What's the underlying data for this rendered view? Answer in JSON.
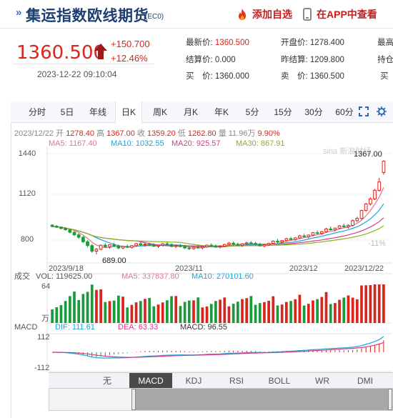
{
  "header": {
    "title_mark": "»",
    "title": "集运指数欧线期货",
    "code": "(EC0)",
    "add_favorite": "添加自选",
    "app_view": "在APP中查看"
  },
  "quote": {
    "price": "1360.500",
    "change": "+150.700",
    "change_pct": "+12.46%",
    "time": "2023-12-22 09:10:04",
    "fields": [
      {
        "label": "最新价:",
        "value": "1360.500",
        "red": true
      },
      {
        "label": "开盘价:",
        "value": "1278.400",
        "red": false
      },
      {
        "label": "最高",
        "value": "",
        "red": false
      },
      {
        "label": "结算价:",
        "value": "0.000",
        "red": false
      },
      {
        "label": "昨结算:",
        "value": "1209.800",
        "red": false
      },
      {
        "label": "持仓",
        "value": "",
        "red": false
      },
      {
        "label": "买　价:",
        "value": "1360.000",
        "red": false
      },
      {
        "label": "卖　价:",
        "value": "1360.500",
        "red": false
      },
      {
        "label": "买",
        "value": "",
        "red": false
      }
    ]
  },
  "periods": [
    "分时",
    "5日",
    "年线",
    "日K",
    "周K",
    "月K",
    "年K",
    "5分",
    "15分",
    "30分",
    "60分"
  ],
  "active_period": "日K",
  "ohlc": {
    "date": "2023/12/22",
    "open_label": "开",
    "open": "1278.40",
    "high_label": "高",
    "high": "1367.00",
    "close_label": "收",
    "close": "1359.20",
    "low_label": "低",
    "low": "1262.80",
    "vol_label": "量",
    "vol": "11.96万",
    "pct": "9.90%"
  },
  "ma": [
    {
      "label": "MA5: 1167.40",
      "color": "#e8718d"
    },
    {
      "label": "MA10: 1032.55",
      "color": "#1ba5d8"
    },
    {
      "label": "MA20: 925.57",
      "color": "#d93a8a"
    },
    {
      "label": "MA30: 867.91",
      "color": "#8ab21b"
    }
  ],
  "watermark": "sina 新浪财经",
  "price_axis": [
    "1440",
    "1120",
    "800"
  ],
  "dates": [
    "2023/9/18",
    "2023/11",
    "2023/12",
    "2023/12/22"
  ],
  "annotations": {
    "high": "1367.00",
    "low": "689.00",
    "pct_axis": "-11%"
  },
  "volume": {
    "label": "成交",
    "vol": "VOL: 119625.00",
    "ma5": "MA5: 337837.80",
    "ma10": "MA10: 270101.60",
    "axis_top": "64",
    "axis_unit": "万"
  },
  "macd": {
    "label": "MACD",
    "dif": "DIF: 111.61",
    "dea": "DEA: 63.33",
    "macd": "MACD: 96.55",
    "axis_top": "112",
    "axis_bottom": "-112"
  },
  "indicator_tabs": [
    "无",
    "MACD",
    "KDJ",
    "RSI",
    "BOLL",
    "WR",
    "DMI"
  ],
  "active_indicator": "MACD",
  "nav": {
    "up": "▲",
    "down": "▼"
  },
  "colors": {
    "up": "#d9251c",
    "down": "#1a9a3b",
    "title": "#1d3e73"
  },
  "chart_data": {
    "type": "candlestick",
    "x": [
      "2023/9/18",
      "2023/11",
      "2023/12",
      "2023/12/22"
    ],
    "last": {
      "open": 1278.4,
      "high": 1367.0,
      "close": 1359.2,
      "low": 1262.8
    },
    "ylim": [
      689,
      1440
    ],
    "candles": [
      [
        900,
        905,
        885,
        890
      ],
      [
        892,
        900,
        880,
        884
      ],
      [
        886,
        890,
        870,
        875
      ],
      [
        876,
        885,
        860,
        866
      ],
      [
        866,
        872,
        840,
        848
      ],
      [
        848,
        858,
        820,
        830
      ],
      [
        830,
        842,
        800,
        812
      ],
      [
        812,
        822,
        770,
        780
      ],
      [
        780,
        792,
        740,
        752
      ],
      [
        752,
        765,
        700,
        712
      ],
      [
        712,
        735,
        689,
        726
      ],
      [
        726,
        760,
        718,
        755
      ],
      [
        755,
        770,
        735,
        744
      ],
      [
        744,
        762,
        730,
        758
      ],
      [
        758,
        770,
        742,
        748
      ],
      [
        748,
        760,
        725,
        735
      ],
      [
        735,
        752,
        725,
        746
      ],
      [
        746,
        760,
        735,
        740
      ],
      [
        740,
        756,
        730,
        752
      ],
      [
        752,
        772,
        745,
        766
      ],
      [
        766,
        775,
        750,
        758
      ],
      [
        758,
        770,
        745,
        762
      ],
      [
        762,
        774,
        752,
        756
      ],
      [
        756,
        768,
        742,
        748
      ],
      [
        748,
        760,
        735,
        755
      ],
      [
        755,
        770,
        745,
        765
      ],
      [
        765,
        780,
        755,
        760
      ],
      [
        760,
        770,
        740,
        746
      ],
      [
        746,
        760,
        735,
        752
      ],
      [
        752,
        765,
        740,
        745
      ],
      [
        745,
        758,
        728,
        735
      ],
      [
        735,
        748,
        720,
        730
      ],
      [
        730,
        745,
        722,
        740
      ],
      [
        740,
        755,
        730,
        736
      ],
      [
        736,
        750,
        725,
        744
      ],
      [
        744,
        760,
        738,
        755
      ],
      [
        755,
        768,
        745,
        750
      ],
      [
        750,
        760,
        735,
        742
      ],
      [
        742,
        755,
        732,
        748
      ],
      [
        748,
        765,
        742,
        760
      ],
      [
        760,
        778,
        752,
        770
      ],
      [
        770,
        782,
        755,
        762
      ],
      [
        762,
        775,
        748,
        755
      ],
      [
        755,
        770,
        742,
        765
      ],
      [
        765,
        780,
        755,
        772
      ],
      [
        772,
        785,
        760,
        768
      ],
      [
        768,
        780,
        752,
        760
      ],
      [
        760,
        772,
        745,
        750
      ],
      [
        750,
        762,
        738,
        758
      ],
      [
        758,
        772,
        750,
        768
      ],
      [
        768,
        790,
        762,
        784
      ],
      [
        784,
        800,
        770,
        778
      ],
      [
        778,
        792,
        765,
        788
      ],
      [
        788,
        808,
        780,
        802
      ],
      [
        802,
        815,
        790,
        796
      ],
      [
        796,
        812,
        788,
        808
      ],
      [
        808,
        830,
        800,
        822
      ],
      [
        822,
        838,
        810,
        816
      ],
      [
        816,
        832,
        805,
        828
      ],
      [
        828,
        850,
        820,
        845
      ],
      [
        845,
        860,
        832,
        840
      ],
      [
        840,
        858,
        830,
        852
      ],
      [
        852,
        880,
        845,
        872
      ],
      [
        872,
        890,
        860,
        866
      ],
      [
        866,
        882,
        855,
        878
      ],
      [
        878,
        900,
        870,
        894
      ],
      [
        894,
        910,
        880,
        888
      ],
      [
        888,
        905,
        875,
        898
      ],
      [
        898,
        940,
        890,
        932
      ],
      [
        932,
        960,
        920,
        948
      ],
      [
        948,
        1010,
        940,
        1005
      ],
      [
        1005,
        1060,
        995,
        1052
      ],
      [
        1052,
        1100,
        1040,
        1088
      ],
      [
        1088,
        1160,
        1080,
        1150
      ],
      [
        1150,
        1240,
        1140,
        1210
      ],
      [
        1278.4,
        1367.0,
        1262.8,
        1359.2
      ]
    ]
  }
}
